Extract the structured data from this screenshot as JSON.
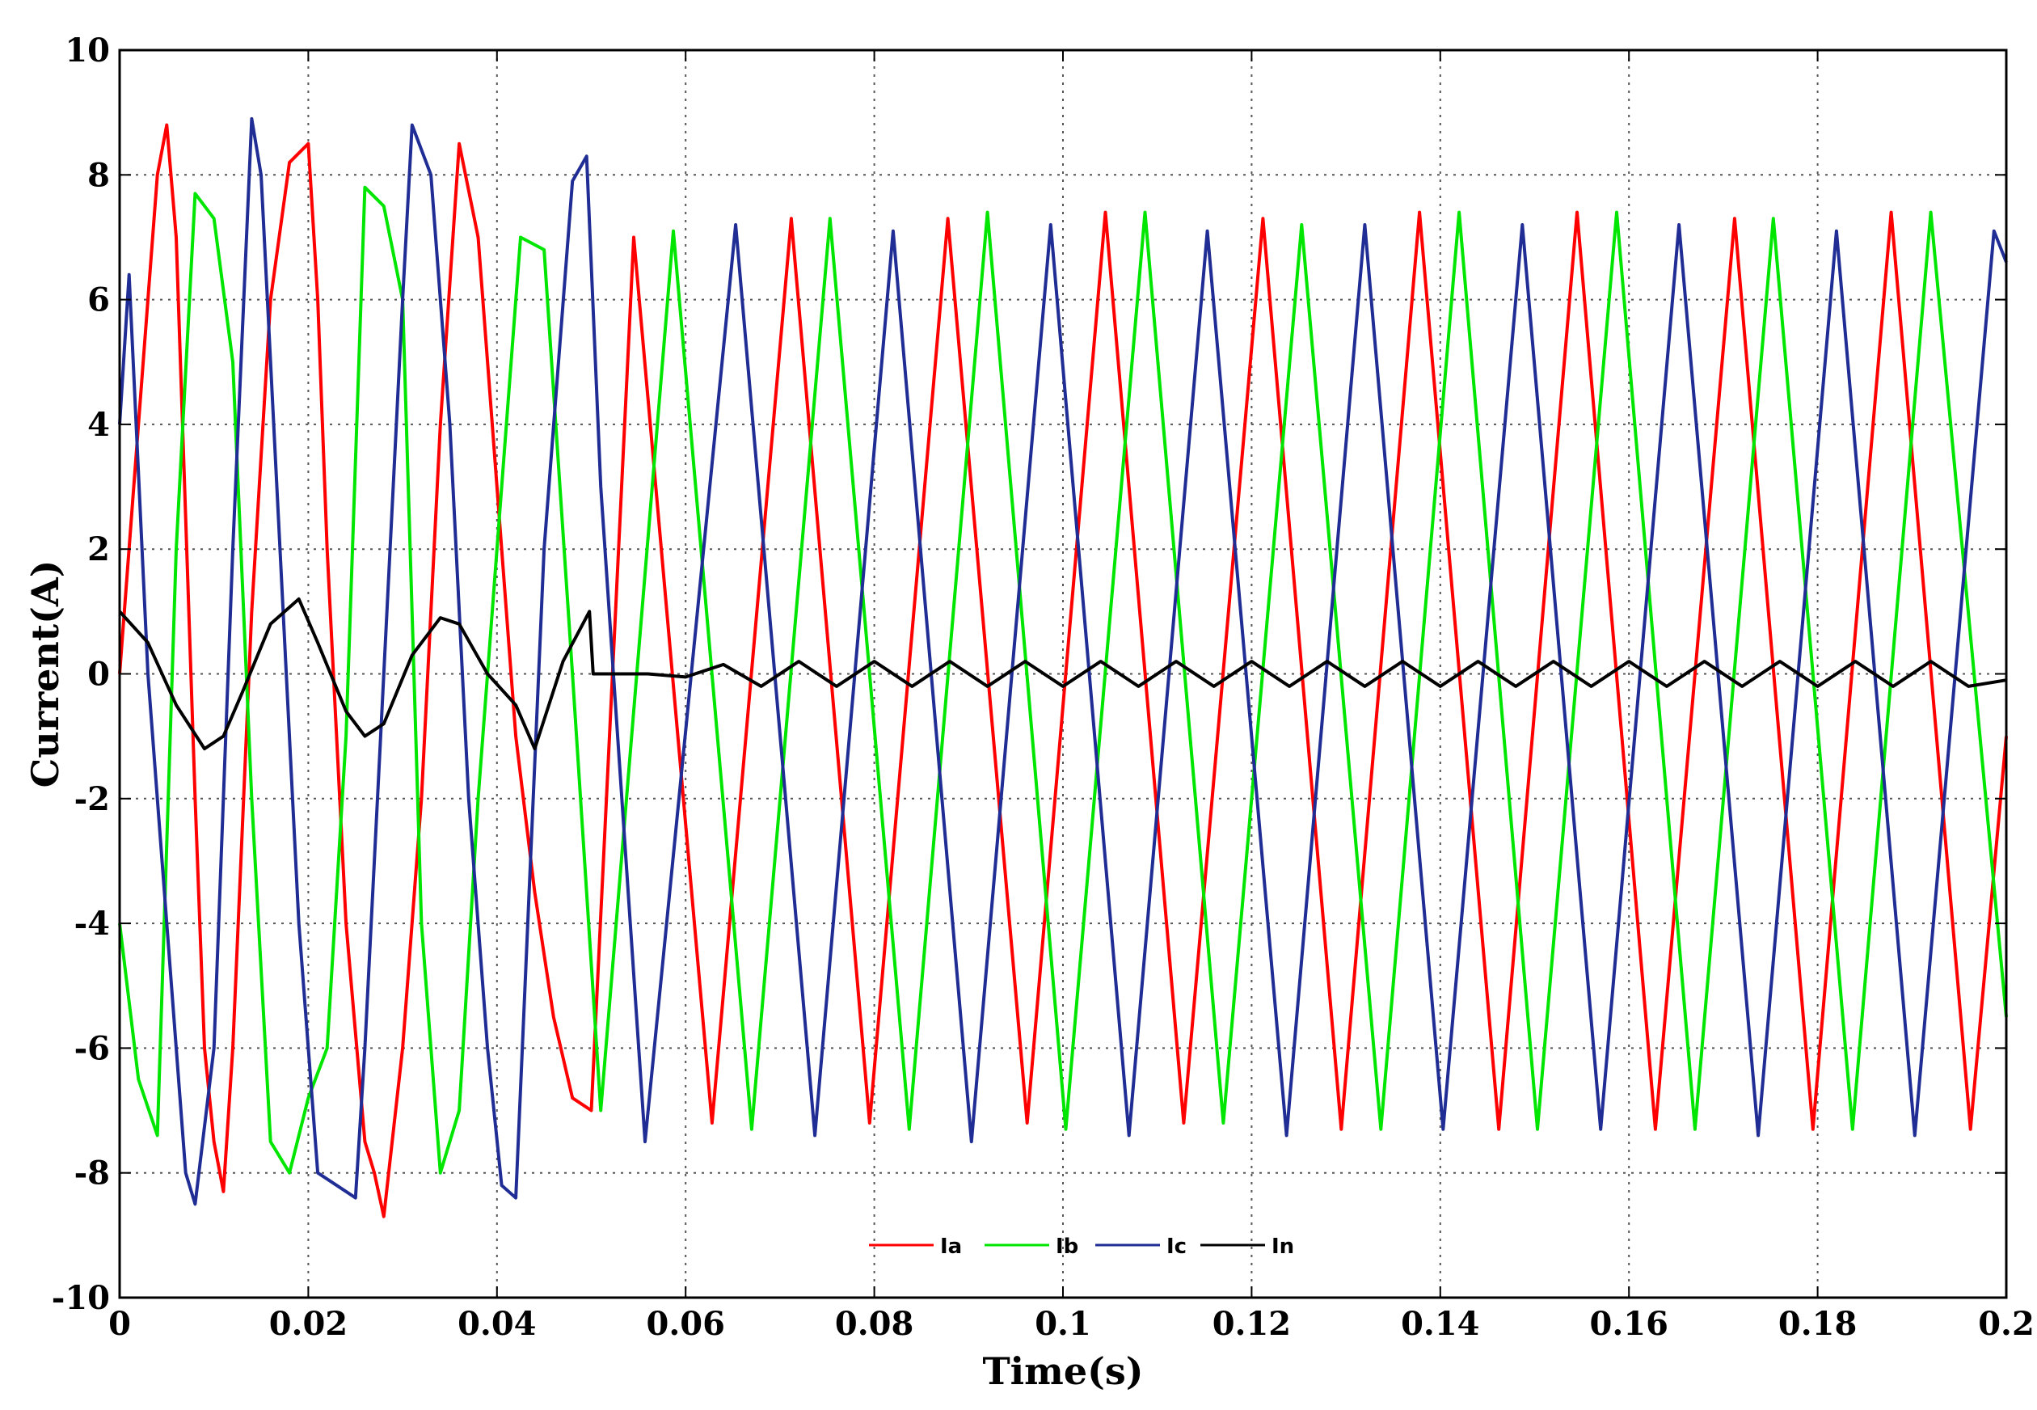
{
  "chart_data": {
    "type": "line",
    "title": "",
    "xlabel": "Time(s)",
    "ylabel": "Current(A)",
    "xlim": [
      0,
      0.2
    ],
    "ylim": [
      -10,
      10
    ],
    "xticks": [
      0,
      0.02,
      0.04,
      0.06,
      0.08,
      0.1,
      0.12,
      0.14,
      0.16,
      0.18,
      0.2
    ],
    "xtick_labels": [
      "0",
      "0.02",
      "0.04",
      "0.06",
      "0.08",
      "0.1",
      "0.12",
      "0.14",
      "0.16",
      "0.18",
      "0.2"
    ],
    "yticks": [
      -10,
      -8,
      -6,
      -4,
      -2,
      0,
      2,
      4,
      6,
      8,
      10
    ],
    "ytick_labels": [
      "-10",
      "-8",
      "-6",
      "-4",
      "-2",
      "0",
      "2",
      "4",
      "6",
      "8",
      "10"
    ],
    "grid": true,
    "legend_position": "bottom-center",
    "series": [
      {
        "name": "Ia",
        "color": "#ff0000",
        "x": [
          0,
          0.002,
          0.004,
          0.005,
          0.006,
          0.008,
          0.009,
          0.01,
          0.011,
          0.012,
          0.014,
          0.016,
          0.018,
          0.02,
          0.021,
          0.022,
          0.024,
          0.026,
          0.027,
          0.028,
          0.03,
          0.032,
          0.034,
          0.036,
          0.038,
          0.04,
          0.042,
          0.044,
          0.046,
          0.048,
          0.05,
          0.0545,
          0.0628,
          0.0712,
          0.0795,
          0.0878,
          0.0962,
          0.1045,
          0.1128,
          0.1212,
          0.1295,
          0.1378,
          0.1462,
          0.1545,
          0.1628,
          0.1712,
          0.1795,
          0.1878,
          0.1962,
          0.2
        ],
        "y": [
          0,
          4,
          8,
          8.8,
          7,
          -2,
          -6,
          -7.5,
          -8.3,
          -6,
          1,
          6,
          8.2,
          8.5,
          6,
          2,
          -4,
          -7.5,
          -8,
          -8.7,
          -6,
          -2,
          4,
          8.5,
          7,
          3,
          -1,
          -3.5,
          -5.5,
          -6.8,
          -7,
          7,
          -7.2,
          7.3,
          -7.2,
          7.3,
          -7.2,
          7.4,
          -7.2,
          7.3,
          -7.3,
          7.4,
          -7.3,
          7.4,
          -7.3,
          7.3,
          -7.3,
          7.4,
          -7.3,
          -1
        ]
      },
      {
        "name": "Ib",
        "color": "#00e600",
        "x": [
          0,
          0.002,
          0.004,
          0.006,
          0.008,
          0.01,
          0.012,
          0.014,
          0.016,
          0.018,
          0.02,
          0.022,
          0.024,
          0.026,
          0.028,
          0.03,
          0.032,
          0.034,
          0.036,
          0.038,
          0.04,
          0.0425,
          0.045,
          0.048,
          0.051,
          0.0587,
          0.067,
          0.0753,
          0.0837,
          0.092,
          0.1003,
          0.1087,
          0.117,
          0.1253,
          0.1337,
          0.142,
          0.1503,
          0.1587,
          0.167,
          0.1753,
          0.1837,
          0.192,
          0.2
        ],
        "y": [
          -4,
          -6.5,
          -7.4,
          2,
          7.7,
          7.3,
          5,
          -2,
          -7.5,
          -8,
          -6.8,
          -6,
          -1,
          7.8,
          7.5,
          6,
          -4,
          -8,
          -7,
          -2,
          2,
          7,
          6.8,
          0,
          -7,
          7.1,
          -7.3,
          7.3,
          -7.3,
          7.4,
          -7.3,
          7.4,
          -7.2,
          7.2,
          -7.3,
          7.4,
          -7.3,
          7.4,
          -7.3,
          7.3,
          -7.3,
          7.4,
          -5.5
        ]
      },
      {
        "name": "Ic",
        "color": "#1f2d95",
        "x": [
          0,
          0.001,
          0.003,
          0.005,
          0.007,
          0.008,
          0.01,
          0.012,
          0.014,
          0.015,
          0.017,
          0.019,
          0.021,
          0.023,
          0.025,
          0.026,
          0.028,
          0.03,
          0.031,
          0.033,
          0.035,
          0.037,
          0.039,
          0.0405,
          0.042,
          0.045,
          0.048,
          0.0495,
          0.051,
          0.0557,
          0.0653,
          0.0737,
          0.082,
          0.0903,
          0.0987,
          0.107,
          0.1153,
          0.1237,
          0.132,
          0.1403,
          0.1487,
          0.157,
          0.1653,
          0.1737,
          0.182,
          0.1903,
          0.1987,
          0.2
        ],
        "y": [
          4,
          6.4,
          0,
          -4,
          -8,
          -8.5,
          -6,
          2,
          8.9,
          8,
          2,
          -4,
          -8,
          -8.2,
          -8.4,
          -6,
          0,
          6,
          8.8,
          8,
          4,
          -2,
          -6,
          -8.2,
          -8.4,
          2,
          7.9,
          8.3,
          3,
          -7.5,
          7.2,
          -7.4,
          7.1,
          -7.5,
          7.2,
          -7.4,
          7.1,
          -7.4,
          7.2,
          -7.3,
          7.2,
          -7.3,
          7.2,
          -7.4,
          7.1,
          -7.4,
          7.1,
          6.6
        ]
      },
      {
        "name": "In",
        "color": "#000000",
        "x": [
          0,
          0.003,
          0.006,
          0.009,
          0.011,
          0.013,
          0.016,
          0.019,
          0.021,
          0.024,
          0.026,
          0.028,
          0.031,
          0.034,
          0.036,
          0.039,
          0.042,
          0.044,
          0.047,
          0.0498,
          0.0502,
          0.056,
          0.06,
          0.064,
          0.068,
          0.072,
          0.076,
          0.08,
          0.084,
          0.088,
          0.092,
          0.096,
          0.1,
          0.104,
          0.108,
          0.112,
          0.116,
          0.12,
          0.124,
          0.128,
          0.132,
          0.136,
          0.14,
          0.144,
          0.148,
          0.152,
          0.156,
          0.16,
          0.164,
          0.168,
          0.172,
          0.176,
          0.18,
          0.184,
          0.188,
          0.192,
          0.196,
          0.2
        ],
        "y": [
          1,
          0.5,
          -0.5,
          -1.2,
          -1,
          -0.3,
          0.8,
          1.2,
          0.5,
          -0.6,
          -1,
          -0.8,
          0.3,
          0.9,
          0.8,
          0,
          -0.5,
          -1.2,
          0.2,
          1,
          0,
          0,
          -0.05,
          0.15,
          -0.2,
          0.2,
          -0.2,
          0.2,
          -0.2,
          0.2,
          -0.2,
          0.2,
          -0.2,
          0.2,
          -0.2,
          0.2,
          -0.2,
          0.2,
          -0.2,
          0.2,
          -0.2,
          0.2,
          -0.2,
          0.2,
          -0.2,
          0.2,
          -0.2,
          0.2,
          -0.2,
          0.2,
          -0.2,
          0.2,
          -0.2,
          0.2,
          -0.2,
          0.2,
          -0.2,
          -0.1
        ]
      }
    ]
  }
}
